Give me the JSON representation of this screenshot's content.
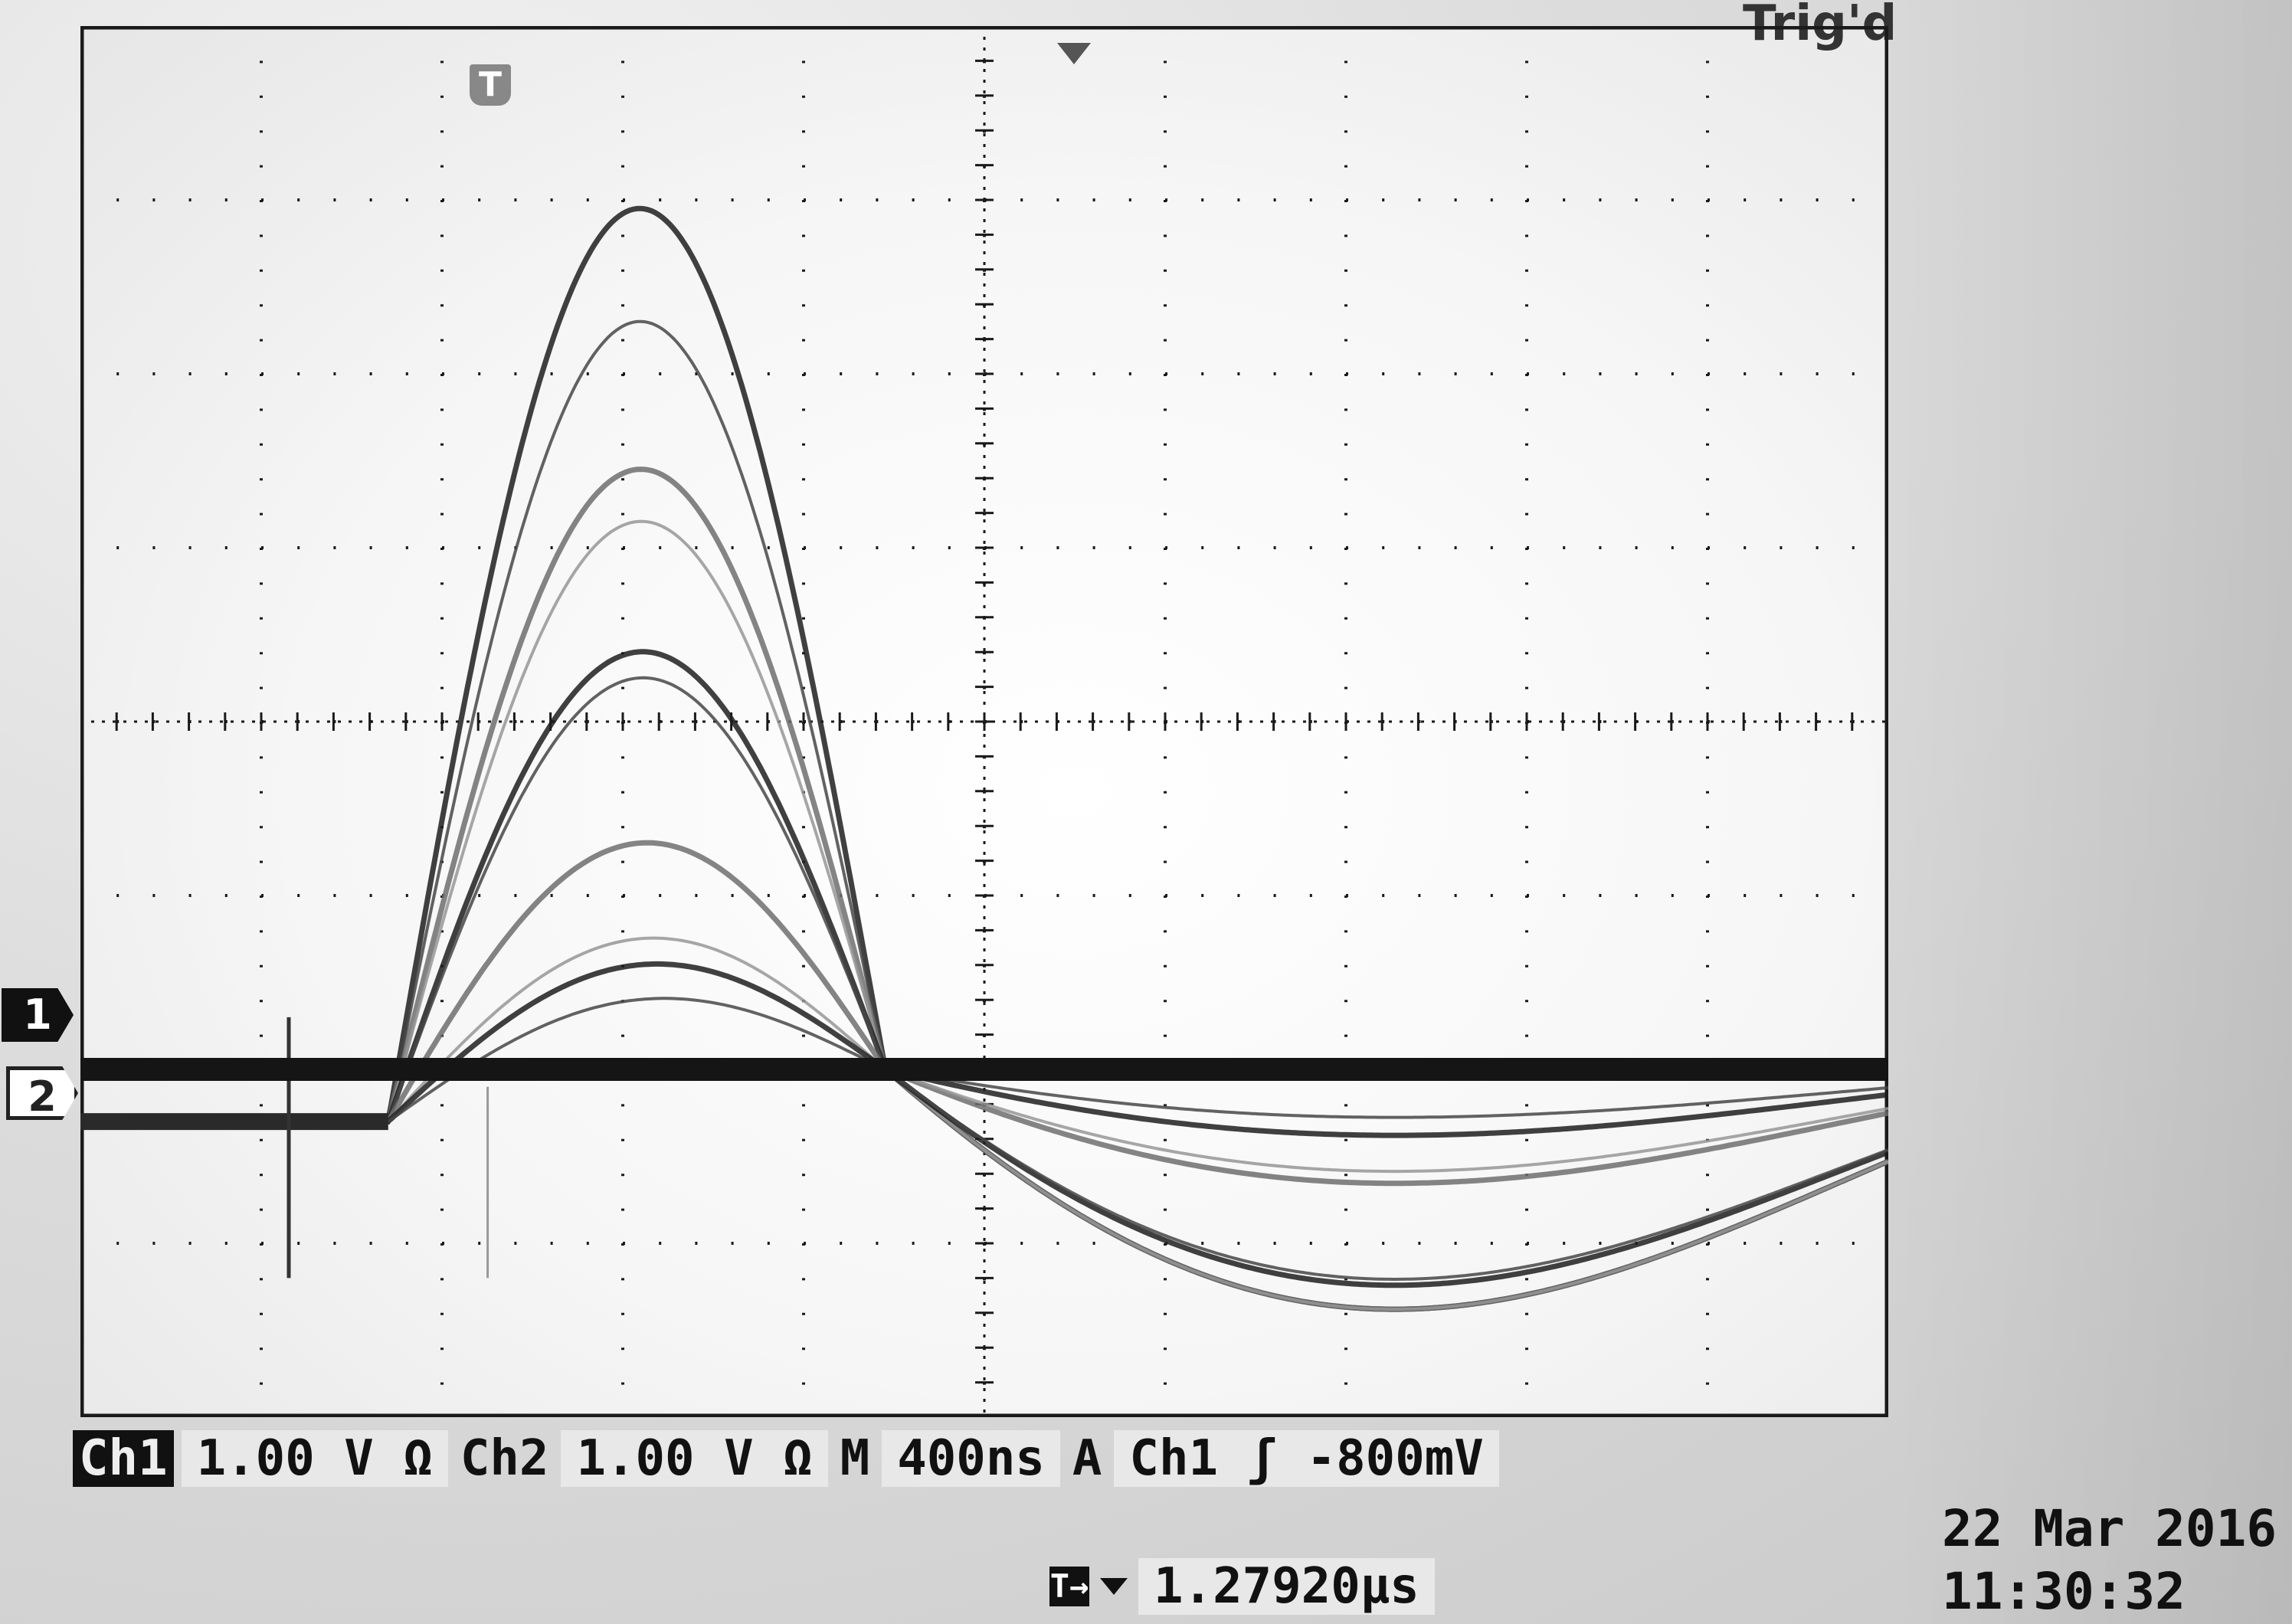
{
  "top_partial_label": "Trig'd",
  "trigger_position_icon": "T",
  "channel_markers": {
    "ch1": "1",
    "ch2": "2"
  },
  "status": {
    "ch1_label": "Ch1",
    "ch1_scale": "1.00 V Ω",
    "ch2_label": "Ch2",
    "ch2_scale": "1.00 V Ω",
    "timebase_label": "M",
    "timebase": "400ns",
    "acq_label": "A",
    "trigger_source": "Ch1",
    "trigger_edge_symbol": "ʃ",
    "trigger_level": "-800mV"
  },
  "trigger_delay": {
    "icon": "T→",
    "value": "1.27920µs"
  },
  "datetime": {
    "date": "22 Mar 2016",
    "time": "11:30:32"
  },
  "colors": {
    "ch1_trace": "#151515",
    "ch2_trace": "#2a2a2a",
    "grid": "#1a1a1a",
    "screen_bg": "#f7f7f7"
  },
  "grid": {
    "divisions_x": 10,
    "divisions_y": 8,
    "minor_ticks_per_division": 5
  },
  "chart_data": {
    "type": "line",
    "title": "",
    "xlabel": "",
    "ylabel": "",
    "x_unit": "ns",
    "x_range": [
      -1721,
      2279
    ],
    "y_unit": "V",
    "y_range": [
      -2.0,
      6.0
    ],
    "series": [
      {
        "channel": "Ch1",
        "kind": "flat",
        "level": 0.0
      },
      {
        "channel": "Ch2",
        "kind": "pulse_family",
        "baseline": -0.3,
        "rise_start_ns": -1040,
        "peak_time_ns": -620,
        "zero_cross_ns": 60,
        "undershoot_time_ns": 700,
        "peak_amplitudes": [
          5.1,
          4.45,
          3.6,
          3.3,
          2.55,
          2.4,
          1.45,
          0.9,
          0.75,
          0.55
        ],
        "undershoot_amplitudes": [
          -2.0,
          -2.0,
          -2.0,
          -2.0,
          -1.8,
          -1.75,
          -0.95,
          -0.85,
          -0.55,
          -0.4
        ]
      }
    ]
  }
}
